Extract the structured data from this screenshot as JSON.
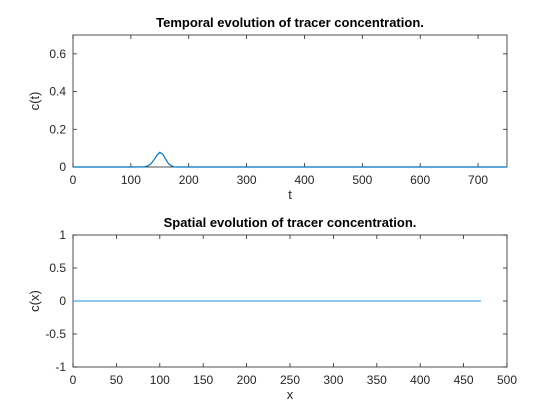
{
  "chart_data": [
    {
      "type": "line",
      "title": "Temporal evolution of tracer concentration.",
      "xlabel": "t",
      "ylabel": "c(t)",
      "xlim": [
        0,
        750
      ],
      "ylim": [
        0,
        0.7
      ],
      "xticks": [
        0,
        100,
        200,
        300,
        400,
        500,
        600,
        700
      ],
      "yticks": [
        0,
        0.2,
        0.4,
        0.6
      ],
      "ytick_labels": [
        "0",
        "0.2",
        "0.4",
        "0.6"
      ],
      "grid": false,
      "line_color": "#0072BD",
      "series": [
        {
          "x": [
            0,
            100,
            120,
            125,
            130,
            135,
            140,
            145,
            150,
            155,
            160,
            165,
            170,
            175,
            180,
            200,
            300,
            400,
            500,
            600,
            700,
            750
          ],
          "values": [
            0,
            0,
            0.0005,
            0.002,
            0.007,
            0.018,
            0.038,
            0.062,
            0.078,
            0.068,
            0.042,
            0.018,
            0.006,
            0.001,
            0,
            0,
            0,
            0,
            0,
            0,
            0,
            0
          ]
        }
      ]
    },
    {
      "type": "line",
      "title": "Spatial evolution of tracer concentration.",
      "xlabel": "x",
      "ylabel": "c(x)",
      "xlim": [
        0,
        500
      ],
      "ylim": [
        -1,
        1
      ],
      "xticks": [
        0,
        50,
        100,
        150,
        200,
        250,
        300,
        350,
        400,
        450,
        500
      ],
      "yticks": [
        -1,
        -0.5,
        0,
        0.5,
        1
      ],
      "ytick_labels": [
        "-1",
        "-0.5",
        "0",
        "0.5",
        "1"
      ],
      "grid": false,
      "line_color": "#4DA3DB",
      "series": [
        {
          "x": [
            0,
            470
          ],
          "values": [
            0,
            0
          ]
        }
      ]
    }
  ]
}
